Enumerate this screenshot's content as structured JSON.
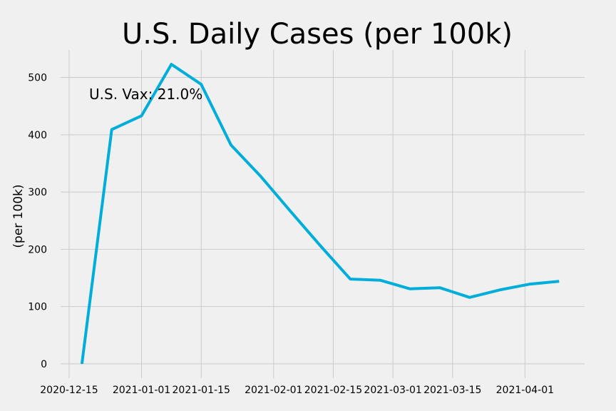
{
  "chart_data": {
    "type": "line",
    "title": "U.S. Daily Cases (per 100k)",
    "xlabel": "",
    "ylabel": "(per 100k)",
    "annotation": "U.S. Vax: 21.0%",
    "grid": true,
    "legend": "none",
    "x_tick_labels": [
      "2020-12-15",
      "2021-01-01",
      "2021-01-15",
      "2021-02-01",
      "2021-02-15",
      "2021-03-01",
      "2021-03-15",
      "2021-04-01"
    ],
    "y_ticks": [
      0,
      100,
      200,
      300,
      400,
      500
    ],
    "x_range": [
      "2020-12-13",
      "2021-04-15"
    ],
    "ylim": [
      -25,
      548
    ],
    "series": [
      {
        "color": "#00aed9",
        "x": [
          "2020-12-18",
          "2020-12-25",
          "2021-01-01",
          "2021-01-08",
          "2021-01-15",
          "2021-01-22",
          "2021-01-29",
          "2021-02-05",
          "2021-02-12",
          "2021-02-19",
          "2021-02-26",
          "2021-03-05",
          "2021-03-12",
          "2021-03-19",
          "2021-03-26",
          "2021-04-02",
          "2021-04-09"
        ],
        "y": [
          0,
          409,
          433,
          523,
          488,
          382,
          327,
          266,
          206,
          148,
          146,
          131,
          133,
          116,
          129,
          139,
          144
        ]
      }
    ]
  }
}
